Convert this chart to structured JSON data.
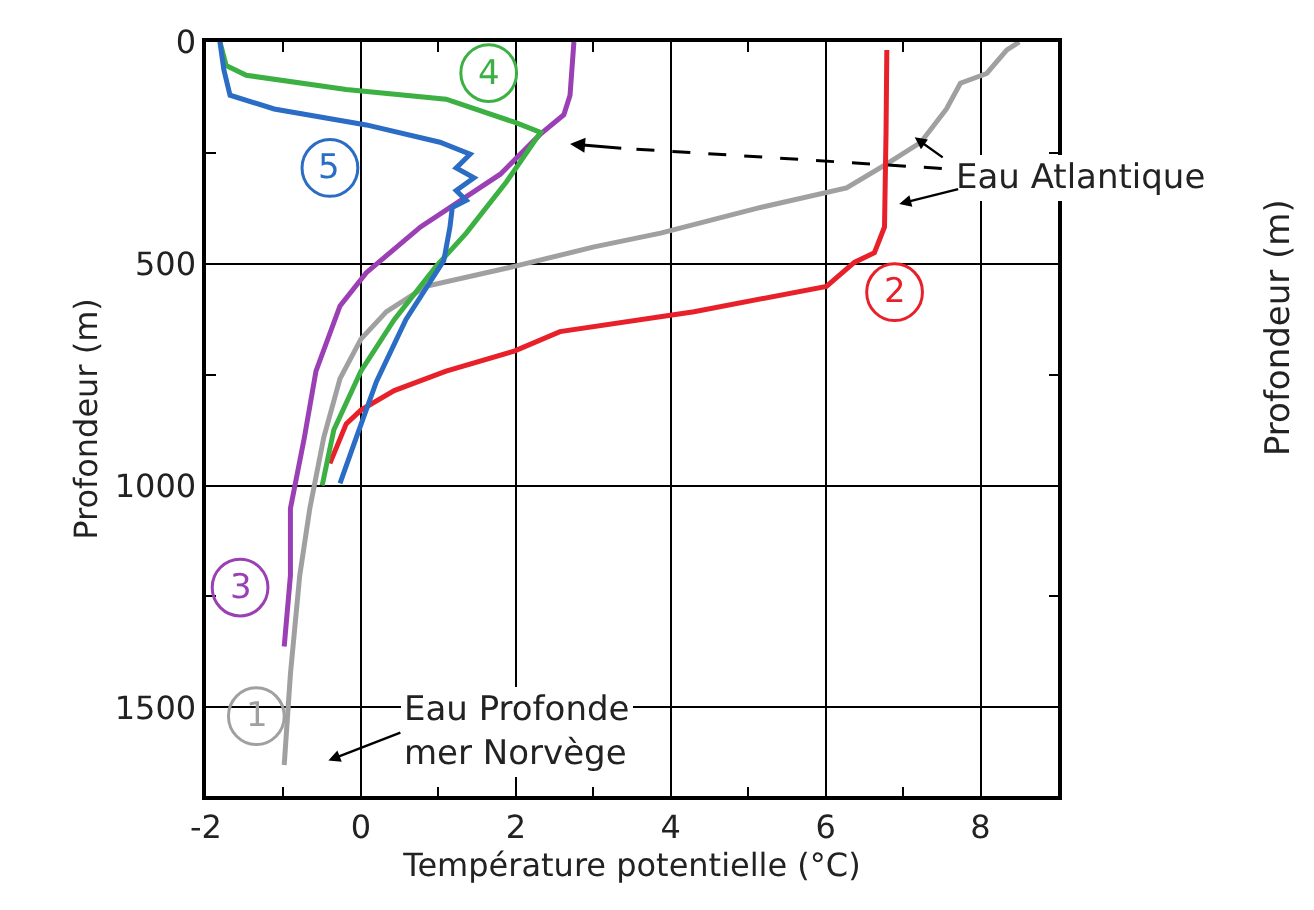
{
  "chart_data": {
    "type": "line",
    "xlabel": "Température potentielle (°C)",
    "ylabel": "Profondeur (m)",
    "xlim": [
      -2,
      9
    ],
    "ylim": [
      1700,
      0
    ],
    "xticks": [
      -2,
      {
        "value": -1,
        "label": null
      },
      0,
      {
        "value": 1,
        "label": null
      },
      2,
      {
        "value": 3,
        "label": null
      },
      4,
      {
        "value": 5,
        "label": null
      },
      6,
      {
        "value": 7,
        "label": null
      },
      8,
      {
        "value": 9,
        "label": null
      }
    ],
    "yticks": [
      0,
      {
        "value": 250,
        "label": null
      },
      500,
      {
        "value": 750,
        "label": null
      },
      1000,
      {
        "value": 1250,
        "label": null
      },
      1500
    ],
    "grid": true,
    "legend": false,
    "marker": "none",
    "line_style": "solid",
    "series": [
      {
        "name": "1",
        "color": "#a0a0a0",
        "x": [
          8.5,
          8.34,
          8.08,
          7.74,
          7.56,
          7.23,
          6.79,
          6.27,
          5.16,
          3.87,
          3.01,
          1.98,
          0.84,
          0.33,
          0.0,
          -0.27,
          -0.48,
          -0.66,
          -0.79,
          -0.91,
          -0.99
        ],
        "values": [
          0,
          18,
          71,
          93,
          151,
          226,
          275,
          329,
          373,
          431,
          462,
          506,
          551,
          608,
          670,
          759,
          892,
          1052,
          1203,
          1425,
          1630
        ]
      },
      {
        "name": "2",
        "color": "#e8202a",
        "x": [
          6.79,
          6.78,
          6.76,
          6.63,
          6.37,
          6.01,
          4.3,
          2.57,
          1.98,
          1.1,
          0.43,
          0.0,
          -0.19,
          -0.4
        ],
        "values": [
          18,
          200,
          417,
          475,
          497,
          551,
          608,
          653,
          697,
          742,
          786,
          830,
          861,
          950
        ]
      },
      {
        "name": "3",
        "color": "#9b3fb5",
        "x": [
          2.75,
          2.7,
          2.62,
          2.31,
          1.8,
          0.77,
          0.07,
          -0.27,
          -0.58,
          -0.73,
          -0.91,
          -0.91,
          -0.99
        ],
        "values": [
          0,
          120,
          164,
          209,
          298,
          417,
          520,
          595,
          742,
          892,
          1052,
          1203,
          1363
        ]
      },
      {
        "name": "4",
        "color": "#3cb043",
        "x": [
          -1.82,
          -1.74,
          -1.48,
          -0.19,
          1.1,
          2.0,
          2.32,
          1.88,
          1.36,
          0.97,
          0.43,
          0.0,
          -0.35,
          -0.5
        ],
        "values": [
          0,
          53,
          75,
          107,
          129,
          182,
          204,
          315,
          431,
          506,
          626,
          742,
          875,
          1000
        ]
      },
      {
        "name": "5",
        "color": "#2b6cc4",
        "x": [
          -1.82,
          -1.77,
          -1.69,
          -1.12,
          0.07,
          1.02,
          1.41,
          1.23,
          1.46,
          1.23,
          1.36,
          1.18,
          1.15,
          1.07,
          0.58,
          0.2,
          -0.06,
          -0.27
        ],
        "values": [
          0,
          62,
          120,
          151,
          187,
          226,
          253,
          284,
          306,
          335,
          357,
          373,
          417,
          493,
          626,
          766,
          892,
          995
        ]
      }
    ],
    "annotations": [
      "Eau Atlantique",
      "Eau Profonde\nmer Norvège",
      "Profondeur (m)"
    ]
  }
}
